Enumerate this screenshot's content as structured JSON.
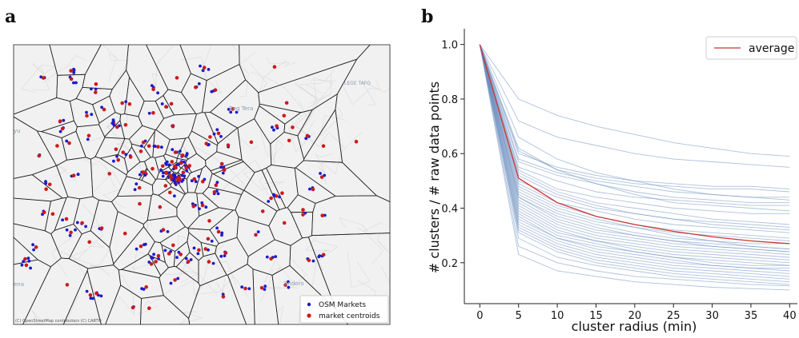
{
  "panel_a": {
    "label": "a",
    "map_labels": [
      "Beg Tera",
      "LEGE TAFO",
      "Endoro",
      "yu",
      "ena"
    ],
    "attribution": "(C) OpenStreetMap contributors (C) CARTO",
    "legend": {
      "osm_label": "OSM Markets",
      "centroid_label": "market centroids"
    },
    "colors": {
      "osm": "#1a1acc",
      "centroid": "#cc1a1a",
      "edges": "#222222",
      "background": "#f1f1f1"
    }
  },
  "panel_b": {
    "label": "b"
  },
  "chart_data": {
    "type": "line",
    "title": "",
    "xlabel": "cluster radius (min)",
    "ylabel": "# clusters / # raw data points",
    "x": [
      0,
      5,
      10,
      15,
      20,
      25,
      30,
      35,
      40
    ],
    "xlim": [
      -2,
      41
    ],
    "ylim": [
      0.05,
      1.04
    ],
    "xticks": [
      "0",
      "5",
      "10",
      "15",
      "20",
      "25",
      "30",
      "35",
      "40"
    ],
    "yticks": [
      "0.2",
      "0.4",
      "0.6",
      "0.8",
      "1.0"
    ],
    "legend": {
      "entries": [
        "average"
      ],
      "position": "top-right"
    },
    "average": {
      "name": "average",
      "color": "#cc3333",
      "values": [
        1.0,
        0.51,
        0.42,
        0.37,
        0.34,
        0.315,
        0.295,
        0.28,
        0.27
      ]
    },
    "series_color": "#6c8ebf",
    "series": [
      {
        "values": [
          1.0,
          0.8,
          0.74,
          0.7,
          0.67,
          0.64,
          0.62,
          0.6,
          0.59
        ]
      },
      {
        "values": [
          1.0,
          0.72,
          0.66,
          0.63,
          0.6,
          0.58,
          0.57,
          0.56,
          0.55
        ]
      },
      {
        "values": [
          1.0,
          0.61,
          0.54,
          0.51,
          0.49,
          0.48,
          0.47,
          0.47,
          0.46
        ]
      },
      {
        "values": [
          1.0,
          0.66,
          0.58,
          0.53,
          0.5,
          0.47,
          0.45,
          0.44,
          0.43
        ]
      },
      {
        "values": [
          1.0,
          0.58,
          0.53,
          0.5,
          0.48,
          0.46,
          0.45,
          0.44,
          0.44
        ]
      },
      {
        "values": [
          1.0,
          0.62,
          0.54,
          0.49,
          0.45,
          0.42,
          0.41,
          0.4,
          0.39
        ]
      },
      {
        "values": [
          1.0,
          0.55,
          0.5,
          0.46,
          0.44,
          0.43,
          0.42,
          0.41,
          0.41
        ]
      },
      {
        "values": [
          1.0,
          0.54,
          0.47,
          0.44,
          0.42,
          0.4,
          0.39,
          0.38,
          0.38
        ]
      },
      {
        "values": [
          1.0,
          0.53,
          0.46,
          0.42,
          0.4,
          0.38,
          0.36,
          0.35,
          0.34
        ]
      },
      {
        "values": [
          1.0,
          0.5,
          0.44,
          0.4,
          0.38,
          0.36,
          0.34,
          0.33,
          0.32
        ]
      },
      {
        "values": [
          1.0,
          0.49,
          0.42,
          0.39,
          0.36,
          0.34,
          0.33,
          0.32,
          0.31
        ]
      },
      {
        "values": [
          1.0,
          0.48,
          0.41,
          0.37,
          0.34,
          0.32,
          0.31,
          0.3,
          0.29
        ]
      },
      {
        "values": [
          1.0,
          0.46,
          0.39,
          0.35,
          0.33,
          0.31,
          0.3,
          0.29,
          0.28
        ]
      },
      {
        "values": [
          1.0,
          0.45,
          0.38,
          0.34,
          0.31,
          0.29,
          0.28,
          0.27,
          0.27
        ]
      },
      {
        "values": [
          1.0,
          0.44,
          0.37,
          0.33,
          0.3,
          0.28,
          0.27,
          0.26,
          0.25
        ]
      },
      {
        "values": [
          1.0,
          0.43,
          0.35,
          0.31,
          0.29,
          0.27,
          0.26,
          0.25,
          0.24
        ]
      },
      {
        "values": [
          1.0,
          0.42,
          0.34,
          0.3,
          0.28,
          0.26,
          0.25,
          0.24,
          0.23
        ]
      },
      {
        "values": [
          1.0,
          0.41,
          0.33,
          0.29,
          0.27,
          0.25,
          0.24,
          0.23,
          0.22
        ]
      },
      {
        "values": [
          1.0,
          0.4,
          0.32,
          0.28,
          0.26,
          0.24,
          0.23,
          0.22,
          0.21
        ]
      },
      {
        "values": [
          1.0,
          0.39,
          0.31,
          0.28,
          0.25,
          0.23,
          0.22,
          0.21,
          0.2
        ]
      },
      {
        "values": [
          1.0,
          0.38,
          0.3,
          0.27,
          0.24,
          0.22,
          0.21,
          0.2,
          0.19
        ]
      },
      {
        "values": [
          1.0,
          0.37,
          0.29,
          0.26,
          0.24,
          0.22,
          0.2,
          0.19,
          0.19
        ]
      },
      {
        "values": [
          1.0,
          0.36,
          0.29,
          0.25,
          0.23,
          0.21,
          0.19,
          0.18,
          0.18
        ]
      },
      {
        "values": [
          1.0,
          0.35,
          0.28,
          0.24,
          0.22,
          0.2,
          0.19,
          0.18,
          0.17
        ]
      },
      {
        "values": [
          1.0,
          0.34,
          0.27,
          0.23,
          0.21,
          0.19,
          0.18,
          0.17,
          0.16
        ]
      },
      {
        "values": [
          1.0,
          0.33,
          0.26,
          0.22,
          0.2,
          0.18,
          0.17,
          0.16,
          0.15
        ]
      },
      {
        "values": [
          1.0,
          0.32,
          0.25,
          0.21,
          0.19,
          0.17,
          0.16,
          0.15,
          0.14
        ]
      },
      {
        "values": [
          1.0,
          0.31,
          0.24,
          0.2,
          0.18,
          0.16,
          0.15,
          0.14,
          0.13
        ]
      },
      {
        "values": [
          1.0,
          0.29,
          0.22,
          0.19,
          0.17,
          0.15,
          0.14,
          0.13,
          0.12
        ]
      },
      {
        "values": [
          1.0,
          0.26,
          0.2,
          0.17,
          0.15,
          0.14,
          0.13,
          0.12,
          0.115
        ]
      },
      {
        "values": [
          1.0,
          0.23,
          0.17,
          0.15,
          0.13,
          0.12,
          0.11,
          0.105,
          0.1
        ]
      },
      {
        "values": [
          1.0,
          0.57,
          0.52,
          0.49,
          0.46,
          0.44,
          0.43,
          0.42,
          0.42
        ]
      },
      {
        "values": [
          1.0,
          0.47,
          0.4,
          0.36,
          0.33,
          0.3,
          0.28,
          0.26,
          0.25
        ]
      },
      {
        "values": [
          1.0,
          0.44,
          0.36,
          0.32,
          0.3,
          0.28,
          0.26,
          0.25,
          0.24
        ]
      },
      {
        "values": [
          1.0,
          0.52,
          0.45,
          0.41,
          0.38,
          0.36,
          0.35,
          0.34,
          0.33
        ]
      },
      {
        "values": [
          1.0,
          0.6,
          0.55,
          0.52,
          0.5,
          0.49,
          0.48,
          0.48,
          0.47
        ]
      }
    ]
  }
}
